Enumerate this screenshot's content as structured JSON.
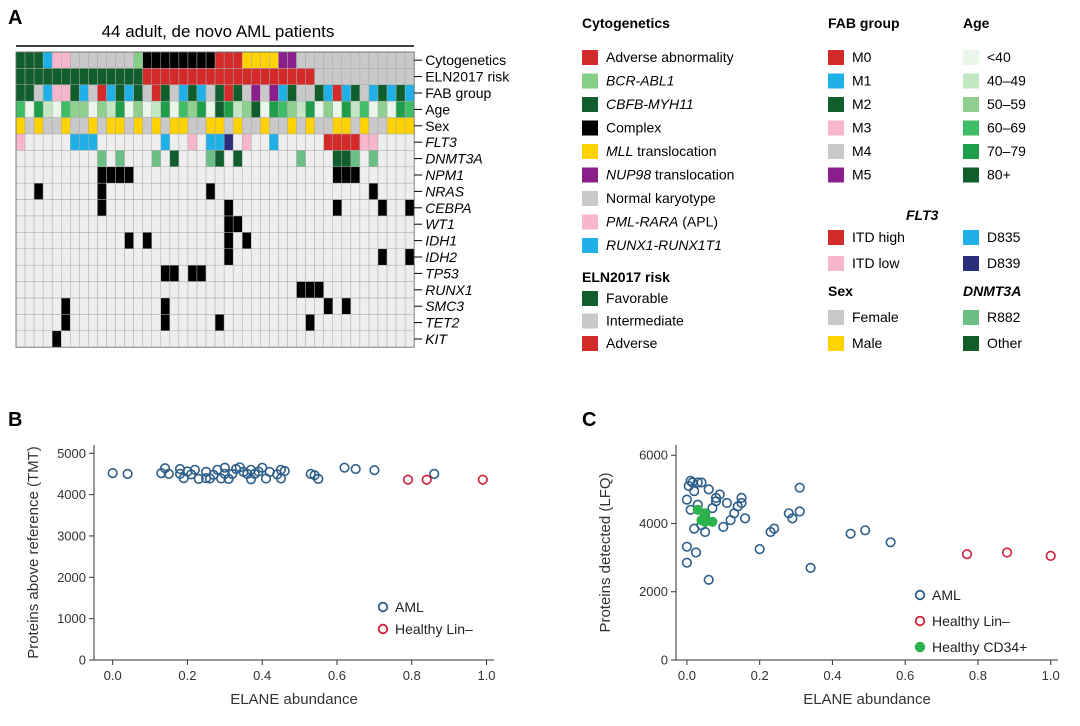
{
  "panels": {
    "a": "A",
    "b": "B",
    "c": "C"
  },
  "oncoprint": {
    "title": "44 adult, de novo AML patients",
    "rows": [
      {
        "label": "Cytogenetics",
        "italic": false
      },
      {
        "label": "ELN2017 risk",
        "italic": false
      },
      {
        "label": "FAB group",
        "italic": false
      },
      {
        "label": "Age",
        "italic": false
      },
      {
        "label": "Sex",
        "italic": false
      },
      {
        "label": "FLT3",
        "italic": true
      },
      {
        "label": "DNMT3A",
        "italic": true
      },
      {
        "label": "NPM1",
        "italic": true
      },
      {
        "label": "NRAS",
        "italic": true
      },
      {
        "label": "CEBPA",
        "italic": true
      },
      {
        "label": "WT1",
        "italic": true
      },
      {
        "label": "IDH1",
        "italic": true
      },
      {
        "label": "IDH2",
        "italic": true
      },
      {
        "label": "TP53",
        "italic": true
      },
      {
        "label": "RUNX1",
        "italic": true
      },
      {
        "label": "SMC3",
        "italic": true
      },
      {
        "label": "TET2",
        "italic": true
      },
      {
        "label": "KIT",
        "italic": true
      }
    ],
    "n_patients": 44,
    "matrix": {
      "cytogenetics": [
        "CB",
        "CB",
        "CB",
        "R",
        "PR",
        "PR",
        "N",
        "N",
        "N",
        "N",
        "N",
        "N",
        "N",
        "BA",
        "CX",
        "CX",
        "CX",
        "CX",
        "CX",
        "CX",
        "CX",
        "CX",
        "A",
        "A",
        "A",
        "M",
        "M",
        "M",
        "M",
        "NU",
        "NU",
        "N",
        "N",
        "N",
        "N",
        "N",
        "N",
        "N",
        "N",
        "N",
        "N",
        "N",
        "N",
        "N"
      ],
      "eln": [
        "F",
        "F",
        "F",
        "F",
        "F",
        "F",
        "F",
        "F",
        "F",
        "F",
        "F",
        "F",
        "F",
        "F",
        "A",
        "A",
        "A",
        "A",
        "A",
        "A",
        "A",
        "A",
        "A",
        "A",
        "A",
        "A",
        "A",
        "A",
        "A",
        "A",
        "A",
        "A",
        "A",
        "I",
        "I",
        "I",
        "I",
        "I",
        "I",
        "I",
        "I",
        "I",
        "I",
        "I"
      ],
      "fab": [
        "M2",
        "M2",
        "M4",
        "M1",
        "M3",
        "M3",
        "M2",
        "M1",
        "M4",
        "M0",
        "M1",
        "M2",
        "M1",
        "M2",
        "M4",
        "M0",
        "M2",
        "M4",
        "M1",
        "M2",
        "M1",
        "M4",
        "M2",
        "M0",
        "M2",
        "M4",
        "M5",
        "M4",
        "M5",
        "M1",
        "M2",
        "M4",
        "M4",
        "M2",
        "M1",
        "M0",
        "M1",
        "M2",
        "M4",
        "M1",
        "M2",
        "M1",
        "M2",
        "M1"
      ],
      "age": [
        "A4",
        "W",
        "A5",
        "A2",
        "W",
        "A4",
        "A3",
        "A3",
        "W",
        "A3",
        "A2",
        "A5",
        "W",
        "A3",
        "W",
        "A2",
        "A5",
        "W",
        "A4",
        "A3",
        "A5",
        "W",
        "A6",
        "A5",
        "A2",
        "A3",
        "A6",
        "W",
        "A5",
        "A4",
        "A3",
        "A2",
        "A5",
        "W",
        "A3",
        "W",
        "A5",
        "A2",
        "A4",
        "W",
        "A3",
        "W",
        "A5",
        "A4"
      ],
      "sex": [
        "Ma",
        "F",
        "Ma",
        "F",
        "F",
        "Ma",
        "F",
        "F",
        "Ma",
        "F",
        "Ma",
        "Ma",
        "F",
        "Ma",
        "F",
        "Ma",
        "F",
        "Ma",
        "Ma",
        "F",
        "F",
        "Ma",
        "Ma",
        "F",
        "Ma",
        "F",
        "F",
        "Ma",
        "F",
        "F",
        "Ma",
        "F",
        "Ma",
        "F",
        "F",
        "Ma",
        "Ma",
        "F",
        "Ma",
        "F",
        "F",
        "Ma",
        "Ma",
        "Ma"
      ],
      "flt3": {
        "0": "IL",
        "6": "D835",
        "7": "D835",
        "8": "D835",
        "16": "D835",
        "19": "IL",
        "21": "D835",
        "22": "D835",
        "23": "D839",
        "25": "IL",
        "28": "D835",
        "34": "IH",
        "35": "IH",
        "36": "IH",
        "37": "IH",
        "38": "IL",
        "39": "IL"
      },
      "dnmt3a": {
        "9": "R",
        "11": "R",
        "15": "R",
        "17": "O",
        "21": "R",
        "22": "O",
        "24": "O",
        "31": "R",
        "35": "O",
        "36": "O",
        "37": "R",
        "39": "R"
      },
      "mutations": {
        "npm1": [
          9,
          10,
          11,
          12,
          35,
          36,
          37
        ],
        "nras": [
          2,
          9,
          21,
          39
        ],
        "cebpa": [
          9,
          23,
          35,
          40,
          43
        ],
        "wt1": [
          23,
          24
        ],
        "idh1": [
          12,
          14,
          23,
          25
        ],
        "idh2": [
          23,
          40,
          43
        ],
        "tp53": [
          16,
          17,
          19,
          20
        ],
        "runx1": [
          31,
          32,
          33
        ],
        "smc3": [
          5,
          16,
          34,
          36
        ],
        "tet2": [
          5,
          16,
          22,
          32
        ],
        "kit": [
          4
        ]
      }
    }
  },
  "legends": {
    "cytogenetics": {
      "title": "Cytogenetics",
      "items": [
        {
          "label": "Adverse abnormality",
          "color": "#d42a2a"
        },
        {
          "label": "BCR-ABL1",
          "color": "#86cf86"
        },
        {
          "label": "CBFB-MYH11",
          "color": "#0f5e2b"
        },
        {
          "label": "Complex",
          "color": "#000000"
        },
        {
          "label": "MLL translocation",
          "color": "#ffd200"
        },
        {
          "label": "NUP98 translocation",
          "color": "#8a1e8a"
        },
        {
          "label": "Normal karyotype",
          "color": "#c9c9c9"
        },
        {
          "label": "PML-RARA (APL)",
          "color": "#f7b6c9"
        },
        {
          "label": "RUNX1-RUNX1T1",
          "color": "#1fb0e8"
        }
      ]
    },
    "eln": {
      "title": "ELN2017 risk",
      "items": [
        {
          "label": "Favorable",
          "color": "#0f5e2b"
        },
        {
          "label": "Intermediate",
          "color": "#c9c9c9"
        },
        {
          "label": "Adverse",
          "color": "#d42a2a"
        }
      ]
    },
    "fab": {
      "title": "FAB group",
      "items": [
        {
          "label": "M0",
          "color": "#d42a2a"
        },
        {
          "label": "M1",
          "color": "#1fb0e8"
        },
        {
          "label": "M2",
          "color": "#0f5e2b"
        },
        {
          "label": "M3",
          "color": "#f7b6c9"
        },
        {
          "label": "M4",
          "color": "#c9c9c9"
        },
        {
          "label": "M5",
          "color": "#8a1e8a"
        }
      ]
    },
    "age": {
      "title": "Age",
      "items": [
        {
          "label": "<40",
          "color": "#eaf6ea"
        },
        {
          "label": "40–49",
          "color": "#c3e6c3"
        },
        {
          "label": "50–59",
          "color": "#8fd08f"
        },
        {
          "label": "60–69",
          "color": "#3fbd67"
        },
        {
          "label": "70–79",
          "color": "#1f9e4a"
        },
        {
          "label": "80+",
          "color": "#0f5e2b"
        }
      ]
    },
    "flt3": {
      "title": "FLT3",
      "items": [
        {
          "label": "ITD high",
          "color": "#d42a2a"
        },
        {
          "label": "D835",
          "color": "#1fb0e8"
        },
        {
          "label": "ITD low",
          "color": "#f7b6c9"
        },
        {
          "label": "D839",
          "color": "#2b2e7a"
        }
      ]
    },
    "sex": {
      "title": "Sex",
      "items": [
        {
          "label": "Female",
          "color": "#c9c9c9"
        },
        {
          "label": "Male",
          "color": "#ffd200"
        }
      ]
    },
    "dnmt3a": {
      "title": "DNMT3A",
      "items": [
        {
          "label": "R882",
          "color": "#6cbf84"
        },
        {
          "label": "Other",
          "color": "#0f5e2b"
        }
      ]
    },
    "italic_labels": {
      "BCR-ABL1": "BCR-ABL1",
      "CBFB-MYH11": "CBFB-MYH11",
      "MLL": "MLL",
      "NUP98": "NUP98",
      "PML-RARA": "PML-RARA",
      "RUNX1-RUNX1T1": "RUNX1-RUNX1T1"
    }
  },
  "chart_data": [
    {
      "panel": "B",
      "type": "scatter",
      "xlabel": "ELANE abundance",
      "ylabel": "Proteins above reference (TMT)",
      "xlim": [
        -0.05,
        1.02
      ],
      "ylim": [
        0,
        5200
      ],
      "xticks": [
        "0.0",
        "0.2",
        "0.4",
        "0.6",
        "0.8",
        "1.0"
      ],
      "yticks": [
        "0",
        "1000",
        "2000",
        "3000",
        "4000",
        "5000"
      ],
      "legend_position": "bottom-right",
      "series": [
        {
          "name": "AML",
          "color": "#2d5f8a",
          "marker": "open-circle",
          "points": [
            [
              0.0,
              4520
            ],
            [
              0.04,
              4500
            ],
            [
              0.13,
              4520
            ],
            [
              0.14,
              4640
            ],
            [
              0.15,
              4500
            ],
            [
              0.18,
              4500
            ],
            [
              0.18,
              4620
            ],
            [
              0.19,
              4400
            ],
            [
              0.2,
              4560
            ],
            [
              0.21,
              4490
            ],
            [
              0.22,
              4600
            ],
            [
              0.23,
              4380
            ],
            [
              0.25,
              4550
            ],
            [
              0.25,
              4400
            ],
            [
              0.26,
              4390
            ],
            [
              0.27,
              4480
            ],
            [
              0.28,
              4600
            ],
            [
              0.29,
              4390
            ],
            [
              0.3,
              4500
            ],
            [
              0.3,
              4650
            ],
            [
              0.31,
              4380
            ],
            [
              0.32,
              4500
            ],
            [
              0.33,
              4620
            ],
            [
              0.34,
              4660
            ],
            [
              0.35,
              4550
            ],
            [
              0.36,
              4500
            ],
            [
              0.37,
              4600
            ],
            [
              0.37,
              4370
            ],
            [
              0.38,
              4500
            ],
            [
              0.39,
              4560
            ],
            [
              0.4,
              4650
            ],
            [
              0.41,
              4390
            ],
            [
              0.42,
              4550
            ],
            [
              0.44,
              4490
            ],
            [
              0.45,
              4600
            ],
            [
              0.45,
              4390
            ],
            [
              0.46,
              4570
            ],
            [
              0.53,
              4500
            ],
            [
              0.54,
              4470
            ],
            [
              0.55,
              4380
            ],
            [
              0.62,
              4650
            ],
            [
              0.65,
              4620
            ],
            [
              0.7,
              4590
            ],
            [
              0.86,
              4500
            ]
          ]
        },
        {
          "name": "Healthy Lin–",
          "color": "#d21f3c",
          "marker": "open-circle",
          "points": [
            [
              0.79,
              4360
            ],
            [
              0.84,
              4360
            ],
            [
              0.99,
              4360
            ]
          ]
        }
      ]
    },
    {
      "panel": "C",
      "type": "scatter",
      "xlabel": "ELANE abundance",
      "ylabel": "Proteins detected (LFQ)",
      "xlim": [
        -0.03,
        1.02
      ],
      "ylim": [
        0,
        6300
      ],
      "xticks": [
        "0.0",
        "0.2",
        "0.4",
        "0.6",
        "0.8",
        "1.0"
      ],
      "yticks": [
        "0",
        "2000",
        "4000",
        "6000"
      ],
      "legend_position": "bottom-right",
      "series": [
        {
          "name": "AML",
          "color": "#2d5f8a",
          "marker": "open-circle",
          "points": [
            [
              0.0,
              2850
            ],
            [
              0.0,
              3320
            ],
            [
              0.0,
              4700
            ],
            [
              0.005,
              5100
            ],
            [
              0.01,
              5250
            ],
            [
              0.01,
              4400
            ],
            [
              0.015,
              5200
            ],
            [
              0.02,
              4950
            ],
            [
              0.02,
              3850
            ],
            [
              0.025,
              3150
            ],
            [
              0.03,
              5200
            ],
            [
              0.03,
              4550
            ],
            [
              0.04,
              5200
            ],
            [
              0.04,
              3950
            ],
            [
              0.05,
              3750
            ],
            [
              0.05,
              4250
            ],
            [
              0.06,
              5000
            ],
            [
              0.06,
              2350
            ],
            [
              0.07,
              4450
            ],
            [
              0.08,
              4750
            ],
            [
              0.08,
              4650
            ],
            [
              0.09,
              4850
            ],
            [
              0.1,
              3900
            ],
            [
              0.11,
              4600
            ],
            [
              0.12,
              4100
            ],
            [
              0.13,
              4300
            ],
            [
              0.14,
              4500
            ],
            [
              0.15,
              4600
            ],
            [
              0.15,
              4750
            ],
            [
              0.16,
              4150
            ],
            [
              0.2,
              3250
            ],
            [
              0.23,
              3750
            ],
            [
              0.24,
              3850
            ],
            [
              0.28,
              4300
            ],
            [
              0.29,
              4150
            ],
            [
              0.31,
              4350
            ],
            [
              0.31,
              5050
            ],
            [
              0.34,
              2700
            ],
            [
              0.45,
              3700
            ],
            [
              0.49,
              3800
            ],
            [
              0.56,
              3450
            ]
          ]
        },
        {
          "name": "Healthy Lin–",
          "color": "#d21f3c",
          "marker": "open-circle",
          "points": [
            [
              0.77,
              3100
            ],
            [
              0.88,
              3150
            ],
            [
              1.0,
              3050
            ]
          ]
        },
        {
          "name": "Healthy CD34+",
          "color": "#2bb24c",
          "marker": "filled-circle",
          "points": [
            [
              0.03,
              4400
            ],
            [
              0.04,
              4100
            ],
            [
              0.05,
              4050
            ],
            [
              0.07,
              4050
            ],
            [
              0.05,
              4300
            ]
          ]
        }
      ]
    }
  ]
}
